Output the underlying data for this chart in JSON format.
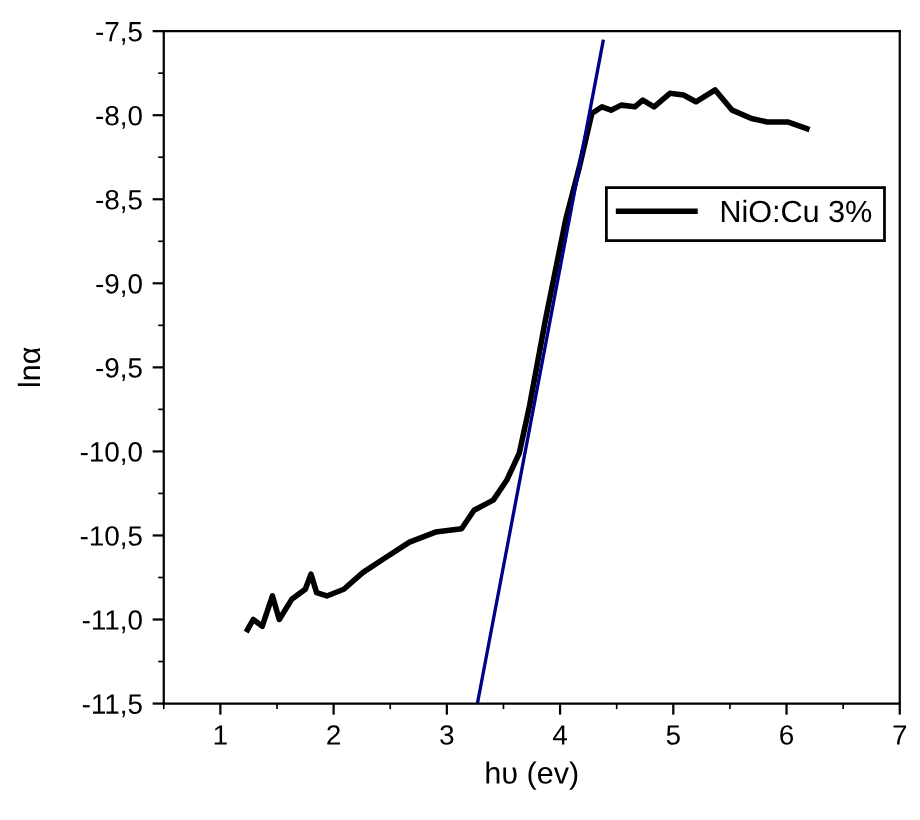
{
  "chart_data": {
    "type": "line",
    "xlabel": "hυ (ev)",
    "ylabel": "lnα",
    "xlim": [
      0.5,
      7
    ],
    "ylim": [
      -11.5,
      -7.5
    ],
    "xticks": [
      1,
      2,
      3,
      4,
      5,
      6,
      7
    ],
    "yticks": [
      {
        "value": -11.5,
        "label": "-11,5"
      },
      {
        "value": -11.0,
        "label": "-11,0"
      },
      {
        "value": -10.5,
        "label": "-10,5"
      },
      {
        "value": -10.0,
        "label": "-10,0"
      },
      {
        "value": -9.5,
        "label": "-9,5"
      },
      {
        "value": -9.0,
        "label": "-9,0"
      },
      {
        "value": -8.5,
        "label": "-8,5"
      },
      {
        "value": -8.0,
        "label": "-8,0"
      },
      {
        "value": -7.5,
        "label": "-7,5"
      }
    ],
    "grid": false,
    "legend": "top right",
    "marker": "none",
    "line_style": "solid",
    "series": [
      {
        "name": "NiO:Cu 3%",
        "color": "#000000",
        "x": [
          1.24,
          1.29,
          1.37,
          1.46,
          1.52,
          1.63,
          1.75,
          1.8,
          1.85,
          1.94,
          2.09,
          2.26,
          2.44,
          2.67,
          2.9,
          3.13,
          3.24,
          3.41,
          3.53,
          3.64,
          3.73,
          3.87,
          4.05,
          4.17,
          4.28,
          4.37,
          4.45,
          4.54,
          4.66,
          4.73,
          4.83,
          4.97,
          5.09,
          5.2,
          5.37,
          5.52,
          5.69,
          5.83,
          6.01,
          6.18
        ],
        "values": [
          -11.06,
          -11.0,
          -11.04,
          -10.86,
          -11.0,
          -10.88,
          -10.82,
          -10.73,
          -10.84,
          -10.86,
          -10.82,
          -10.72,
          -10.64,
          -10.54,
          -10.48,
          -10.46,
          -10.35,
          -10.29,
          -10.17,
          -10.01,
          -9.73,
          -9.22,
          -8.62,
          -8.31,
          -7.99,
          -7.95,
          -7.97,
          -7.94,
          -7.95,
          -7.91,
          -7.95,
          -7.87,
          -7.88,
          -7.92,
          -7.85,
          -7.97,
          -8.02,
          -8.04,
          -8.04,
          -8.08
        ]
      },
      {
        "color": "#00008b",
        "x": [
          3.27,
          4.38
        ],
        "values": [
          -11.5,
          -7.56
        ]
      }
    ]
  }
}
